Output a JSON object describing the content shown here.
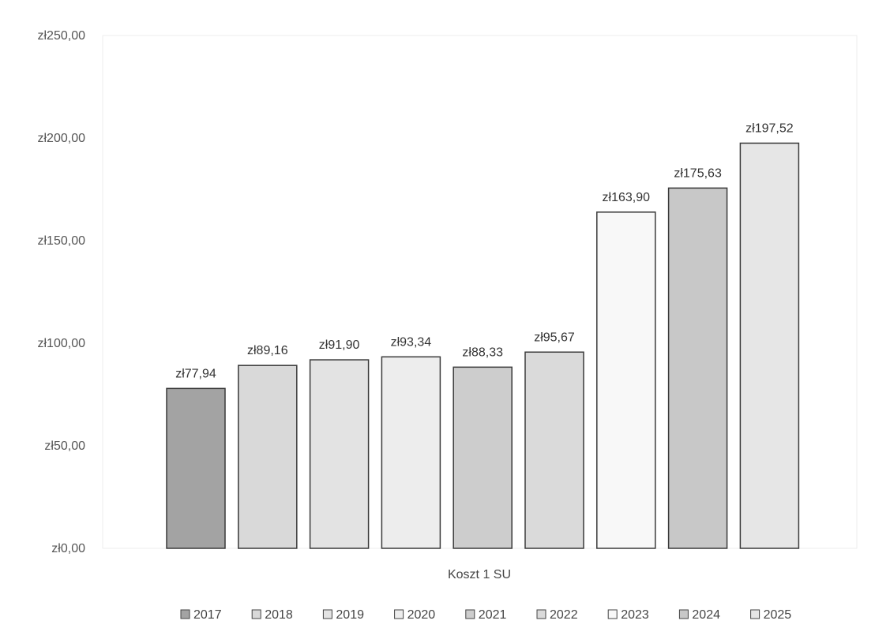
{
  "chart_data": {
    "type": "bar",
    "title": "",
    "xlabel": "",
    "ylabel": "",
    "category_label": "Koszt 1 SU",
    "ylim": [
      0,
      250
    ],
    "y_ticks": [
      {
        "value": 0,
        "label": "zł0,00"
      },
      {
        "value": 50,
        "label": "zł50,00"
      },
      {
        "value": 100,
        "label": "zł100,00"
      },
      {
        "value": 150,
        "label": "zł150,00"
      },
      {
        "value": 200,
        "label": "zł200,00"
      },
      {
        "value": 250,
        "label": "zł250,00"
      }
    ],
    "grid": false,
    "legend_position": "bottom",
    "series": [
      {
        "name": "2017",
        "value": 77.94,
        "label": "zł77,94",
        "color": "#a3a3a3"
      },
      {
        "name": "2018",
        "value": 89.16,
        "label": "zł89,16",
        "color": "#d9d9d9"
      },
      {
        "name": "2019",
        "value": 91.9,
        "label": "zł91,90",
        "color": "#e3e3e3"
      },
      {
        "name": "2020",
        "value": 93.34,
        "label": "zł93,34",
        "color": "#ededed"
      },
      {
        "name": "2021",
        "value": 88.33,
        "label": "zł88,33",
        "color": "#cdcdcd"
      },
      {
        "name": "2022",
        "value": 95.67,
        "label": "zł95,67",
        "color": "#dadada"
      },
      {
        "name": "2023",
        "value": 163.9,
        "label": "zł163,90",
        "color": "#f8f8f8"
      },
      {
        "name": "2024",
        "value": 175.63,
        "label": "zł175,63",
        "color": "#c8c8c8"
      },
      {
        "name": "2025",
        "value": 197.52,
        "label": "zł197,52",
        "color": "#e6e6e6"
      }
    ]
  }
}
